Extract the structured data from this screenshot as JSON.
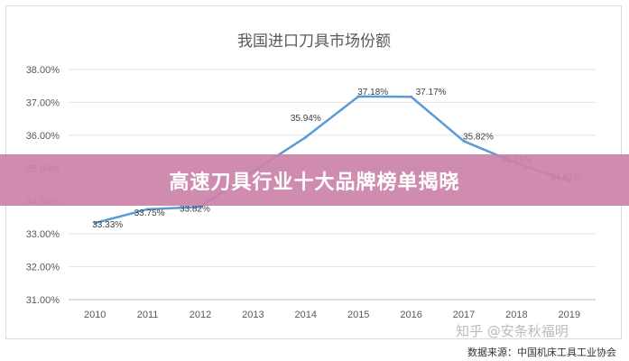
{
  "chart_data": {
    "type": "line",
    "title": "我国进口刀具市场份额",
    "xlabel": "",
    "ylabel": "",
    "categories": [
      "2010",
      "2011",
      "2012",
      "2013",
      "2014",
      "2015",
      "2016",
      "2017",
      "2018",
      "2019"
    ],
    "series": [
      {
        "values": [
          33.33,
          33.75,
          33.82,
          34.9,
          35.94,
          37.18,
          37.17,
          35.82,
          35.15,
          34.61
        ],
        "labels": [
          "33.33%",
          "33.75%",
          "33.82%",
          "",
          "35.94%",
          "37.18%",
          "37.17%",
          "35.82%",
          "35.15%",
          "34.61%"
        ],
        "color": "#5b9bd5"
      }
    ],
    "ylim": [
      31,
      38
    ],
    "yticks": [
      "31.00%",
      "32.00%",
      "33.00%",
      "34.00%",
      "35.00%",
      "36.00%",
      "37.00%",
      "38.00%"
    ],
    "grid": true,
    "legend": "none"
  },
  "banner": {
    "text": "高速刀具行业十大品牌榜单揭晓",
    "color": "#cc82a8"
  },
  "watermark": {
    "text": "知乎 @安条秋福明"
  },
  "source": {
    "text": "数据来源：中国机床工具工业协会"
  }
}
